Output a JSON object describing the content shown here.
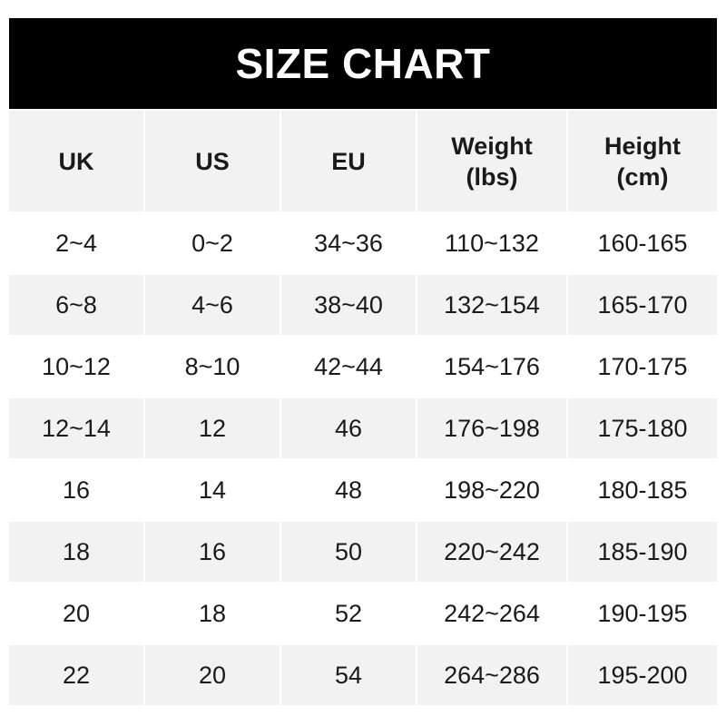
{
  "title": "SIZE CHART",
  "headers": [
    {
      "line1": "UK",
      "line2": ""
    },
    {
      "line1": "US",
      "line2": ""
    },
    {
      "line1": "EU",
      "line2": ""
    },
    {
      "line1": "Weight",
      "line2": "(lbs)"
    },
    {
      "line1": "Height",
      "line2": "(cm)"
    }
  ],
  "rows": [
    [
      "2~4",
      "0~2",
      "34~36",
      "110~132",
      "160-165"
    ],
    [
      "6~8",
      "4~6",
      "38~40",
      "132~154",
      "165-170"
    ],
    [
      "10~12",
      "8~10",
      "42~44",
      "154~176",
      "170-175"
    ],
    [
      "12~14",
      "12",
      "46",
      "176~198",
      "175-180"
    ],
    [
      "16",
      "14",
      "48",
      "198~220",
      "180-185"
    ],
    [
      "18",
      "16",
      "50",
      "220~242",
      "185-190"
    ],
    [
      "20",
      "18",
      "52",
      "242~264",
      "190-195"
    ],
    [
      "22",
      "20",
      "54",
      "264~286",
      "195-200"
    ]
  ],
  "colors": {
    "banner": "#000000",
    "stripe": "#f2f2f2",
    "text": "#1a1a1a"
  }
}
